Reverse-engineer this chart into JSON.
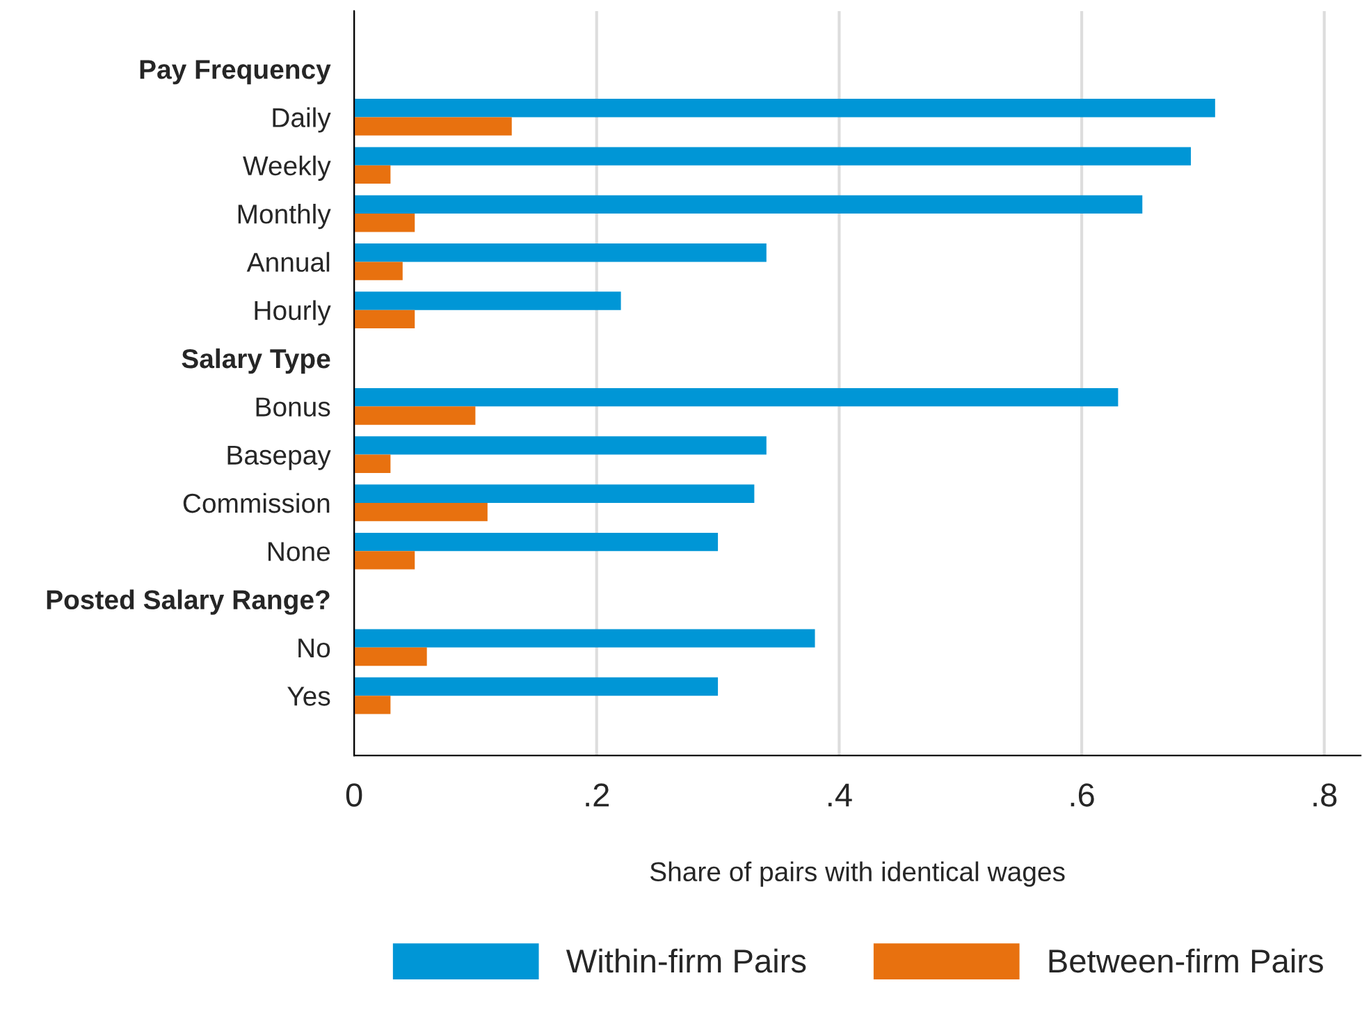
{
  "chart_data": {
    "type": "bar",
    "orientation": "horizontal",
    "categories": [
      "Pay Frequency",
      "Daily",
      "Weekly",
      "Monthly",
      "Annual",
      "Hourly",
      "Salary Type",
      "Bonus",
      "Basepay",
      "Commission",
      "None",
      "Posted Salary Range?",
      "No",
      "Yes"
    ],
    "series": [
      {
        "name": "Within-firm Pairs",
        "color": "#0096d6",
        "values": [
          null,
          0.71,
          0.69,
          0.65,
          0.34,
          0.22,
          null,
          0.63,
          0.34,
          0.33,
          0.3,
          null,
          0.38,
          0.3
        ]
      },
      {
        "name": "Between-firm Pairs",
        "color": "#e8710f",
        "values": [
          null,
          0.13,
          0.03,
          0.05,
          0.04,
          0.05,
          null,
          0.1,
          0.03,
          0.11,
          0.05,
          null,
          0.06,
          0.03
        ]
      }
    ],
    "xlabel": "Share of pairs with identical wages",
    "xlim": [
      0,
      0.83
    ],
    "xticks": [
      0,
      {
        "value": 0.2,
        "label": ".2"
      },
      {
        "value": 0.4,
        "label": ".4"
      },
      {
        "value": 0.6,
        "label": ".6"
      },
      {
        "value": 0.8,
        "label": ".8"
      }
    ],
    "grid": "x",
    "legend": "bottom"
  }
}
